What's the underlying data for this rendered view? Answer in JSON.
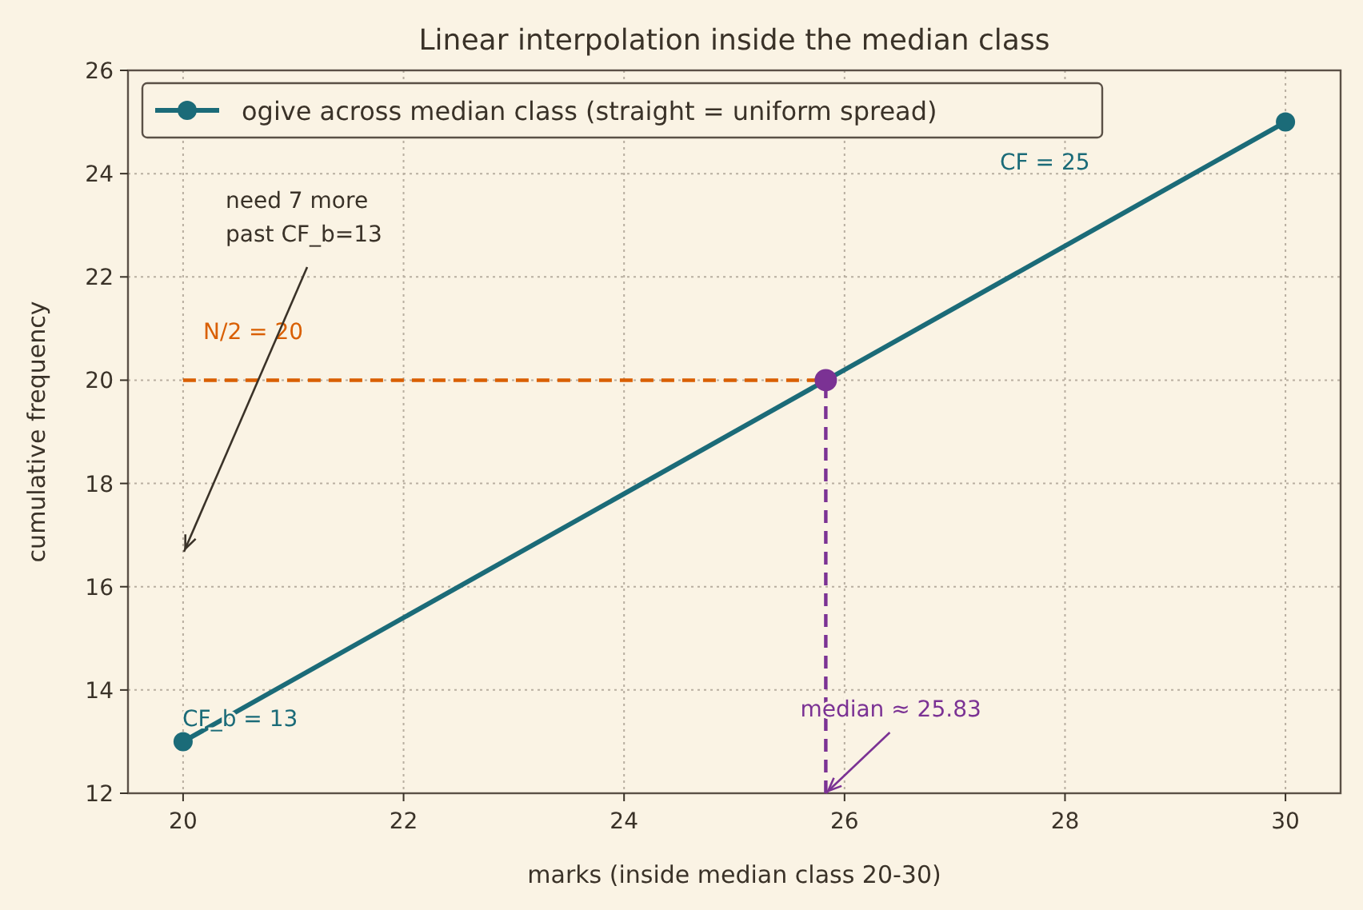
{
  "chart_data": {
    "type": "line",
    "title": "Linear interpolation inside the median class",
    "xlabel": "marks (inside median class 20-30)",
    "ylabel": "cumulative frequency",
    "xlim": [
      19.5,
      30.5
    ],
    "xticks": [
      20,
      22,
      24,
      26,
      28,
      30
    ],
    "ylim": [
      12,
      26
    ],
    "yticks": [
      12,
      14,
      16,
      18,
      20,
      22,
      24,
      26
    ],
    "grid": true,
    "legend": "top left",
    "series": [
      {
        "name": "ogive across median class (straight = uniform spread)",
        "color": "#1b6b78",
        "x": [
          20,
          30
        ],
        "values": [
          13,
          25
        ],
        "marker": "circle",
        "line_style": "solid"
      },
      {
        "type": "line",
        "color": "#d95f02",
        "x": [
          20,
          25.83
        ],
        "values": [
          20,
          20
        ],
        "marker": "none",
        "line_style": "dashed"
      },
      {
        "type": "line",
        "color": "#7b3294",
        "x": [
          25.83,
          25.83
        ],
        "values": [
          12,
          20
        ],
        "marker": "none",
        "line_style": "dashed"
      },
      {
        "type": "scatter",
        "color": "#7b3294",
        "x": [
          25.83
        ],
        "values": [
          20
        ],
        "marker": "circle"
      }
    ],
    "annotations": [
      "N/2 = 20",
      "need 7 more\npast CF_b=13",
      "CF_b = 13",
      "CF = 25",
      {
        "text": "median ≈ 25.83",
        "x": 25.83,
        "y": 12
      }
    ]
  }
}
